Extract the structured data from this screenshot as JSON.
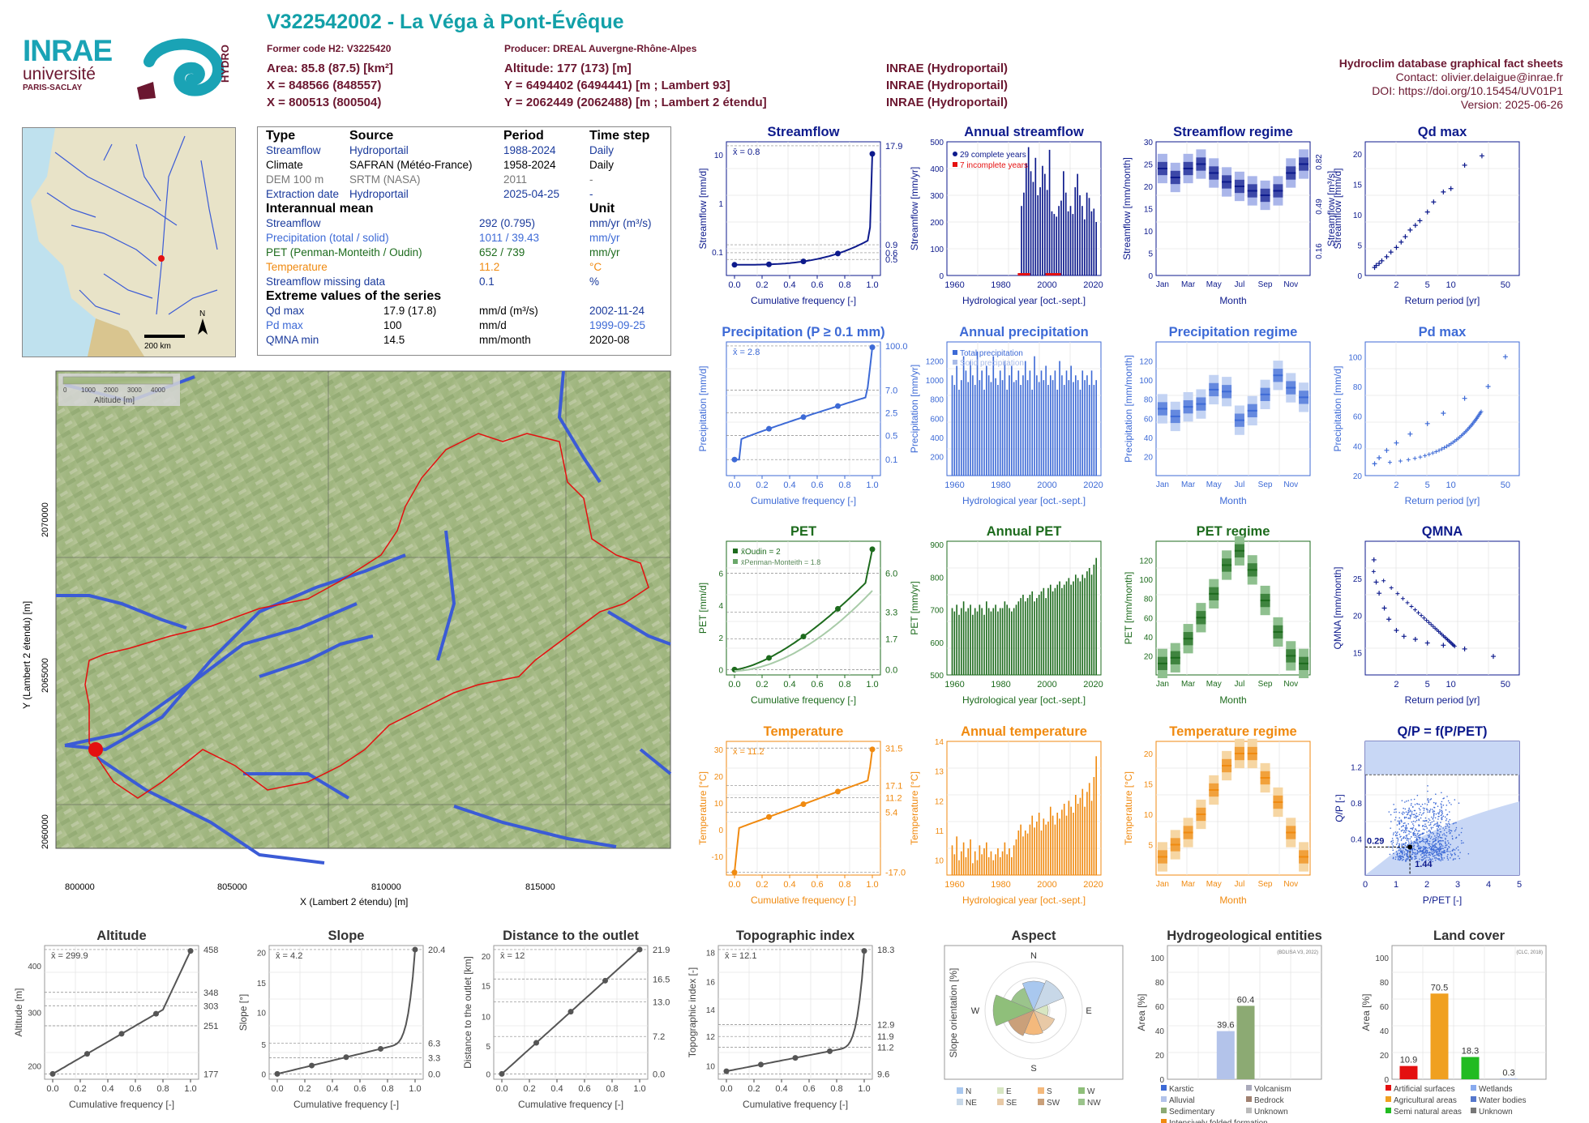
{
  "header": {
    "title": "V322542002 - La Véga à Pont-Évêque",
    "former_code": "Former code H2: V3225420",
    "producer": "Producer: DREAL Auvergne-Rhône-Alpes",
    "area": "Area: 85.8 (87.5) [km²]",
    "x93": "X = 848566 (848557)",
    "x2e": "X = 800513 (800504)",
    "altitude": "Altitude: 177 (173) [m]",
    "y93": "Y = 6494402 (6494441) [m ; Lambert 93]",
    "y2e": "Y = 2062449 (2062488) [m ; Lambert 2 étendu]",
    "src1": "INRAE (Hydroportail)",
    "src2": "INRAE (Hydroportail)",
    "src3": "INRAE (Hydroportail)",
    "db": "Hydroclim database graphical fact sheets",
    "contact": "Contact: olivier.delaigue@inrae.fr",
    "doi": "DOI: https://doi.org/10.15454/UV01P1",
    "version": "Version: 2025-06-26"
  },
  "logos": {
    "inrae": "INRAE",
    "univ": "université",
    "paris": "PARIS-SACLAY",
    "hydro": "HYDRO"
  },
  "minimap": {
    "scale": "200 km",
    "north": "N"
  },
  "info": {
    "h_type": "Type",
    "h_source": "Source",
    "h_period": "Period",
    "h_step": "Time step",
    "rows": [
      {
        "type": "Streamflow",
        "source": "Hydroportail",
        "period": "1988-2024",
        "step": "Daily",
        "color": "#1a3a9c"
      },
      {
        "type": "Climate",
        "source": "SAFRAN (Météo-France)",
        "period": "1958-2024",
        "step": "Daily",
        "color": "#000000"
      },
      {
        "type": "DEM 100 m",
        "source": "SRTM (NASA)",
        "period": "2011",
        "step": "-",
        "color": "#777777"
      },
      {
        "type": "Extraction date",
        "source": "Hydroportail",
        "period": "2025-04-25",
        "step": "-",
        "color": "#1a3a9c"
      }
    ],
    "h_mean": "Interannual mean",
    "h_unit": "Unit",
    "means": [
      {
        "label": "Streamflow",
        "value": "292 (0.795)",
        "unit": "mm/yr (m³/s)",
        "color": "#1a3a9c"
      },
      {
        "label": "Precipitation (total / solid)",
        "value": "1011 / 39.43",
        "unit": "mm/yr",
        "color": "#3d6ad6"
      },
      {
        "label": "PET (Penman-Monteith / Oudin)",
        "value": "652 / 739",
        "unit": "mm/yr",
        "color": "#1d6b1d"
      },
      {
        "label": "Temperature",
        "value": "11.2",
        "unit": "°C",
        "color": "#f08a10"
      },
      {
        "label": "Streamflow missing data",
        "value": "0.1",
        "unit": "%",
        "color": "#1a3a9c"
      }
    ],
    "h_extreme": "Extreme values of the series",
    "extremes": [
      {
        "label": "Qd max",
        "value": "17.9 (17.8)",
        "unit": "mm/d (m³/s)",
        "date": "2002-11-24",
        "color": "#1a3a9c"
      },
      {
        "label": "Pd max",
        "value": "100",
        "unit": "mm/d",
        "date": "1999-09-25",
        "color": "#3d6ad6"
      },
      {
        "label": "QMNA min",
        "value": "14.5",
        "unit": "mm/month",
        "date": "2020-08",
        "color": "#1a3a9c"
      }
    ]
  },
  "map": {
    "xlabel": "X (Lambert 2 étendu) [m]",
    "ylabel": "Y (Lambert 2 étendu) [m]",
    "xticks": [
      "800000",
      "805000",
      "810000",
      "815000"
    ],
    "yticks": [
      "2070000",
      "2065000",
      "2060000"
    ],
    "legend_ticks": [
      "0",
      "1000",
      "2000",
      "3000",
      "4000"
    ],
    "legend_label": "Altitude [m]"
  },
  "panels": {
    "streamflow": {
      "title": "Streamflow",
      "ylabel": "Streamflow [mm/d]",
      "xlabel": "Cumulative frequency [-]",
      "mean": "x̄ = 0.8",
      "right": [
        "17.9",
        "0.9",
        "0.6",
        "0.5"
      ]
    },
    "annual_streamflow": {
      "title": "Annual streamflow",
      "ylabel": "Streamflow [mm/yr]",
      "xlabel": "Hydrological year [oct.-sept.]",
      "leg1": "29 complete years",
      "leg2": "7 incomplete years"
    },
    "streamflow_regime": {
      "title": "Streamflow regime",
      "ylabel": "Streamflow [mm/month]",
      "xlabel": "Month",
      "right": [
        "0.82",
        "0.49",
        "0.16"
      ],
      "rlabel": "Streamflow [m³/s]"
    },
    "qd_max": {
      "title": "Qd max",
      "ylabel": "Streamflow [mm/d]",
      "xlabel": "Return period [yr]"
    },
    "precipitation": {
      "title": "Precipitation (P ≥ 0.1 mm)",
      "ylabel": "Precipitation [mm/d]",
      "xlabel": "Cumulative frequency [-]",
      "mean": "x̄ = 2.8",
      "right": [
        "100.0",
        "7.0",
        "2.5",
        "0.5",
        "0.1"
      ]
    },
    "annual_precipitation": {
      "title": "Annual precipitation",
      "ylabel": "Precipitation [mm/yr]",
      "xlabel": "Hydrological year [oct.-sept.]",
      "leg1": "Total precipitation",
      "leg2": "Solid precipitation"
    },
    "precipitation_regime": {
      "title": "Precipitation regime",
      "ylabel": "Precipitation [mm/month]",
      "xlabel": "Month"
    },
    "pd_max": {
      "title": "Pd max",
      "ylabel": "Precipitation [mm/d]",
      "xlabel": "Return period [yr]"
    },
    "pet": {
      "title": "PET",
      "ylabel": "PET [mm/d]",
      "xlabel": "Cumulative frequency [-]",
      "leg1": "x̄Oudin = 2",
      "leg2": "x̄Penman-Monteith = 1.8",
      "right": [
        "6.0",
        "3.3",
        "1.7",
        "0.0"
      ]
    },
    "annual_pet": {
      "title": "Annual PET",
      "ylabel": "PET [mm/yr]",
      "xlabel": "Hydrological year [oct.-sept.]"
    },
    "pet_regime": {
      "title": "PET regime",
      "ylabel": "PET [mm/month]",
      "xlabel": "Month"
    },
    "qmna": {
      "title": "QMNA",
      "ylabel": "QMNA [mm/month]",
      "xlabel": "Return period [yr]"
    },
    "temperature": {
      "title": "Temperature",
      "ylabel": "Temperature [°C]",
      "xlabel": "Cumulative frequency [-]",
      "mean": "x̄ = 11.2",
      "right": [
        "31.5",
        "17.1",
        "11.2",
        "5.4",
        "-17.0"
      ]
    },
    "annual_temperature": {
      "title": "Annual temperature",
      "ylabel": "Temperature [°C]",
      "xlabel": "Hydrological year [oct.-sept.]"
    },
    "temperature_regime": {
      "title": "Temperature regime",
      "ylabel": "Temperature [°C]",
      "xlabel": "Month"
    },
    "qp": {
      "title": "Q/P = f(P/PET)",
      "ylabel": "Q/P [-]",
      "xlabel": "P/PET [-]",
      "val1": "0.29",
      "val2": "1.44"
    },
    "altitude": {
      "title": "Altitude",
      "ylabel": "Altitude [m]",
      "xlabel": "Cumulative frequency [-]",
      "mean": "x̄ = 299.9",
      "right": [
        "458",
        "348",
        "303",
        "251",
        "177"
      ]
    },
    "slope": {
      "title": "Slope",
      "ylabel": "Slope [°]",
      "xlabel": "Cumulative frequency [-]",
      "mean": "x̄ = 4.2",
      "right": [
        "20.4",
        "6.3",
        "3.3",
        "0.0"
      ]
    },
    "distance": {
      "title": "Distance to the outlet",
      "ylabel": "Distance to the outlet [km]",
      "xlabel": "Cumulative frequency [-]",
      "mean": "x̄ = 12",
      "right": [
        "21.9",
        "16.5",
        "13.0",
        "7.2",
        "0.0"
      ]
    },
    "topo": {
      "title": "Topographic index",
      "ylabel": "Topographic index [-]",
      "xlabel": "Cumulative frequency [-]",
      "mean": "x̄ = 12.1",
      "right": [
        "18.3",
        "12.9",
        "11.9",
        "11.2",
        "9.6"
      ]
    },
    "aspect": {
      "title": "Aspect",
      "ylabel": "Slope orientation [%]",
      "legend": [
        "N",
        "E",
        "S",
        "W",
        "NE",
        "SE",
        "SW",
        "NW"
      ]
    },
    "hydrogeo": {
      "title": "Hydrogeological entities",
      "ylabel": "Area [%]",
      "source": "(BDLISA V3, 2022)",
      "values": [
        "39.6",
        "60.4"
      ],
      "legend": [
        "Karstic",
        "Volcanism",
        "Alluvial",
        "Bedrock",
        "Sedimentary",
        "Unknown",
        "Intensively folded formation"
      ]
    },
    "landcover": {
      "title": "Land cover",
      "ylabel": "Area [%]",
      "source": "(CLC, 2018)",
      "values": [
        "10.9",
        "70.5",
        "18.3",
        "0.3"
      ],
      "legend": [
        "Artificial surfaces",
        "Wetlands",
        "Agricultural areas",
        "Water bodies",
        "Semi natural areas",
        "Unknown"
      ]
    }
  },
  "colors": {
    "q": "#0d1a8c",
    "p": "#3d6ad6",
    "pet": "#1d6b1d",
    "t": "#f08a10",
    "maroon": "#6b1730"
  },
  "chart_data": [
    {
      "type": "bar",
      "title": "Annual streamflow",
      "x": [
        1990,
        1991,
        1992,
        1993,
        1994,
        1995,
        1996,
        1997,
        1998,
        1999,
        2000,
        2001,
        2002,
        2003,
        2004,
        2005,
        2006,
        2007,
        2008,
        2009,
        2010,
        2011,
        2012,
        2013,
        2014,
        2015,
        2016,
        2017,
        2018,
        2019,
        2020,
        2021,
        2022
      ],
      "values": [
        260,
        310,
        420,
        480,
        390,
        350,
        440,
        300,
        330,
        410,
        380,
        320,
        470,
        240,
        230,
        220,
        260,
        280,
        390,
        310,
        240,
        260,
        230,
        330,
        380,
        300,
        260,
        210,
        310,
        290,
        240,
        250,
        200
      ],
      "ylim": [
        0,
        500
      ]
    },
    {
      "type": "bar",
      "title": "Annual precipitation",
      "x_start": 1959,
      "values": [
        1050,
        950,
        1150,
        900,
        1000,
        1250,
        1100,
        980,
        1200,
        1050,
        950,
        1300,
        1000,
        1100,
        900,
        1150,
        1050,
        980,
        1250,
        1020,
        950,
        1100,
        1000,
        1200,
        900,
        1050,
        1150,
        980,
        1000,
        1100,
        950,
        1050,
        1200,
        1000,
        1100,
        900,
        1250,
        1050,
        980,
        1100,
        1000,
        1150,
        950,
        1050,
        1000,
        1100,
        900,
        1200,
        1050,
        950,
        1100,
        1000,
        1150,
        980,
        1050,
        1000,
        900,
        1100,
        1000,
        1050,
        950,
        1100,
        950,
        1000
      ],
      "ylim": [
        0,
        1400
      ]
    },
    {
      "type": "bar",
      "title": "Annual PET",
      "x_start": 1959,
      "values": [
        700,
        690,
        710,
        680,
        700,
        720,
        690,
        700,
        710,
        680,
        700,
        690,
        710,
        700,
        680,
        720,
        700,
        690,
        700,
        710,
        690,
        700,
        700,
        720,
        710,
        700,
        690,
        700,
        710,
        720,
        730,
        740,
        720,
        730,
        740,
        750,
        720,
        730,
        740,
        750,
        760,
        730,
        760,
        770,
        750,
        760,
        770,
        780,
        760,
        770,
        780,
        790,
        770,
        780,
        800,
        790,
        780,
        800,
        790,
        810,
        820,
        800,
        830,
        850
      ],
      "ylim": [
        500,
        900
      ]
    },
    {
      "type": "bar",
      "title": "Annual temperature",
      "x_start": 1959,
      "values": [
        10.5,
        10.2,
        10.8,
        10.0,
        10.3,
        10.6,
        10.1,
        10.4,
        10.7,
        9.9,
        10.3,
        10.0,
        10.5,
        10.2,
        10.4,
        10.6,
        10.1,
        10.3,
        10.0,
        10.2,
        10.4,
        10.1,
        10.3,
        10.6,
        10.2,
        10.4,
        10.1,
        10.5,
        10.7,
        11.0,
        11.2,
        10.8,
        11.0,
        10.9,
        11.2,
        11.5,
        11.1,
        11.3,
        11.6,
        11.0,
        11.4,
        11.2,
        11.3,
        11.8,
        11.5,
        11.2,
        11.6,
        11.4,
        11.7,
        11.9,
        11.5,
        12.0,
        11.8,
        11.6,
        12.2,
        11.9,
        12.1,
        12.4,
        11.8,
        12.3,
        12.6,
        12.0,
        12.8,
        13.5
      ],
      "ylim": [
        9.5,
        14
      ]
    },
    {
      "type": "box",
      "title": "Streamflow regime",
      "categories": [
        "Jan",
        "Feb",
        "Mar",
        "Apr",
        "May",
        "Jun",
        "Jul",
        "Aug",
        "Sep",
        "Oct",
        "Nov",
        "Dec"
      ],
      "values": [
        24,
        22,
        24,
        25,
        23,
        21,
        20,
        19,
        18,
        19,
        23,
        25
      ],
      "ylim": [
        0,
        30
      ]
    },
    {
      "type": "box",
      "title": "Precipitation regime",
      "categories": [
        "Jan",
        "Feb",
        "Mar",
        "Apr",
        "May",
        "Jun",
        "Jul",
        "Aug",
        "Sep",
        "Oct",
        "Nov",
        "Dec"
      ],
      "values": [
        70,
        62,
        72,
        75,
        90,
        88,
        58,
        68,
        85,
        105,
        92,
        82
      ],
      "ylim": [
        0,
        140
      ]
    },
    {
      "type": "box",
      "title": "PET regime",
      "categories": [
        "Jan",
        "Feb",
        "Mar",
        "Apr",
        "May",
        "Jun",
        "Jul",
        "Aug",
        "Sep",
        "Oct",
        "Nov",
        "Dec"
      ],
      "values": [
        12,
        18,
        38,
        60,
        85,
        115,
        130,
        110,
        78,
        45,
        20,
        12
      ],
      "ylim": [
        0,
        140
      ]
    },
    {
      "type": "box",
      "title": "Temperature regime",
      "categories": [
        "Jan",
        "Feb",
        "Mar",
        "Apr",
        "May",
        "Jun",
        "Jul",
        "Aug",
        "Sep",
        "Oct",
        "Nov",
        "Dec"
      ],
      "values": [
        3,
        5,
        7,
        10,
        14,
        18,
        20,
        20,
        16,
        12,
        7,
        3
      ],
      "ylim": [
        0,
        22
      ]
    },
    {
      "type": "scatter",
      "title": "Qd max",
      "x": [
        1.05,
        1.1,
        1.2,
        1.3,
        1.5,
        1.7,
        2,
        2.3,
        2.6,
        3,
        3.5,
        4,
        5,
        6,
        8,
        10,
        15,
        25
      ],
      "values": [
        1.2,
        1.5,
        1.8,
        2.2,
        2.8,
        3.5,
        4.2,
        5.0,
        5.8,
        6.8,
        7.5,
        8.2,
        9.5,
        11,
        12.5,
        13,
        16.5,
        17.9
      ],
      "ylim": [
        0,
        20
      ]
    },
    {
      "type": "scatter",
      "title": "Pd max",
      "x": [
        1.05,
        1.2,
        1.5,
        2,
        3,
        5,
        8,
        15,
        30,
        50
      ],
      "values": [
        28,
        32,
        37,
        42,
        48,
        55,
        62,
        72,
        80,
        100
      ],
      "ylim": [
        20,
        110
      ]
    },
    {
      "type": "scatter",
      "title": "QMNA",
      "x": [
        1.03,
        1.1,
        1.2,
        1.4,
        1.6,
        2,
        2.5,
        3.5,
        5,
        8,
        15,
        35
      ],
      "values": [
        27.5,
        24.5,
        23,
        21,
        19.5,
        18,
        17.2,
        16.8,
        16.3,
        16,
        15.5,
        14.5
      ],
      "ylim": [
        12,
        30
      ]
    },
    {
      "type": "bar",
      "title": "Hydrogeological entities",
      "categories": [
        "Alluvial",
        "Sedimentary"
      ],
      "values": [
        39.6,
        60.4
      ],
      "ylim": [
        0,
        110
      ]
    },
    {
      "type": "bar",
      "title": "Land cover",
      "categories": [
        "Artificial surfaces",
        "Agricultural areas",
        "Semi natural areas",
        "Water bodies"
      ],
      "values": [
        10.9,
        70.5,
        18.3,
        0.3
      ],
      "ylim": [
        0,
        110
      ]
    }
  ]
}
